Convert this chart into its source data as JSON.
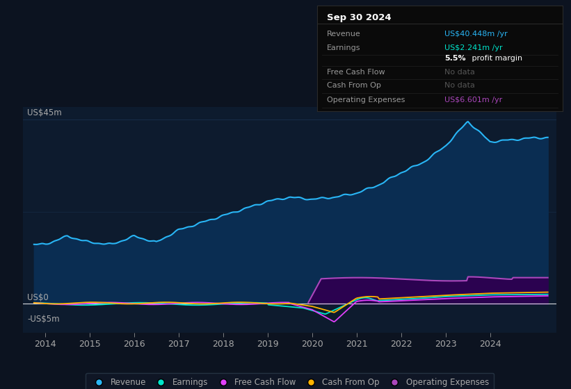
{
  "bg_color": "#0c1320",
  "plot_bg_color": "#0d1b2e",
  "chart_bg_color": "#0d1b2e",
  "grid_color": "#1a3050",
  "text_color": "#aaaaaa",
  "white_color": "#ffffff",
  "y_label_top": "US$45m",
  "y_label_zero": "US$0",
  "y_label_neg": "-US$5m",
  "x_ticks": [
    2014,
    2015,
    2016,
    2017,
    2018,
    2019,
    2020,
    2021,
    2022,
    2023,
    2024
  ],
  "ylim_min": -7,
  "ylim_max": 48,
  "y_zero": 0,
  "y_top": 45,
  "y_mid": 22.5,
  "xlim_min": 2013.5,
  "xlim_max": 2025.5,
  "revenue_color": "#29b6f6",
  "revenue_fill": "#0a2d52",
  "earnings_color": "#00e5cc",
  "fcf_color": "#e040fb",
  "cashfromop_color": "#ffb300",
  "opex_color": "#ab47bc",
  "opex_fill": "#2d0050",
  "tooltip_bg": "#0a0a0a",
  "tooltip_border": "#2a2a2a",
  "revenue_label": "Revenue",
  "earnings_label": "Earnings",
  "fcf_label": "Free Cash Flow",
  "cashfromop_label": "Cash From Op",
  "opex_label": "Operating Expenses",
  "tooltip_date": "Sep 30 2024",
  "tooltip_revenue_label": "Revenue",
  "tooltip_revenue_val": "US$40.448m /yr",
  "tooltip_earnings_label": "Earnings",
  "tooltip_earnings_val": "US$2.241m /yr",
  "tooltip_margin_bold": "5.5%",
  "tooltip_margin_rest": " profit margin",
  "tooltip_fcf_label": "Free Cash Flow",
  "tooltip_fcf_val": "No data",
  "tooltip_cashop_label": "Cash From Op",
  "tooltip_cashop_val": "No data",
  "tooltip_opex_label": "Operating Expenses",
  "tooltip_opex_val": "US$6.601m /yr",
  "revenue_val_color": "#29b6f6",
  "earnings_val_color": "#00e5cc",
  "opex_val_color": "#ab47bc",
  "nodata_color": "#555555",
  "legend_bg": "#111827",
  "legend_border": "#2a3a4a"
}
